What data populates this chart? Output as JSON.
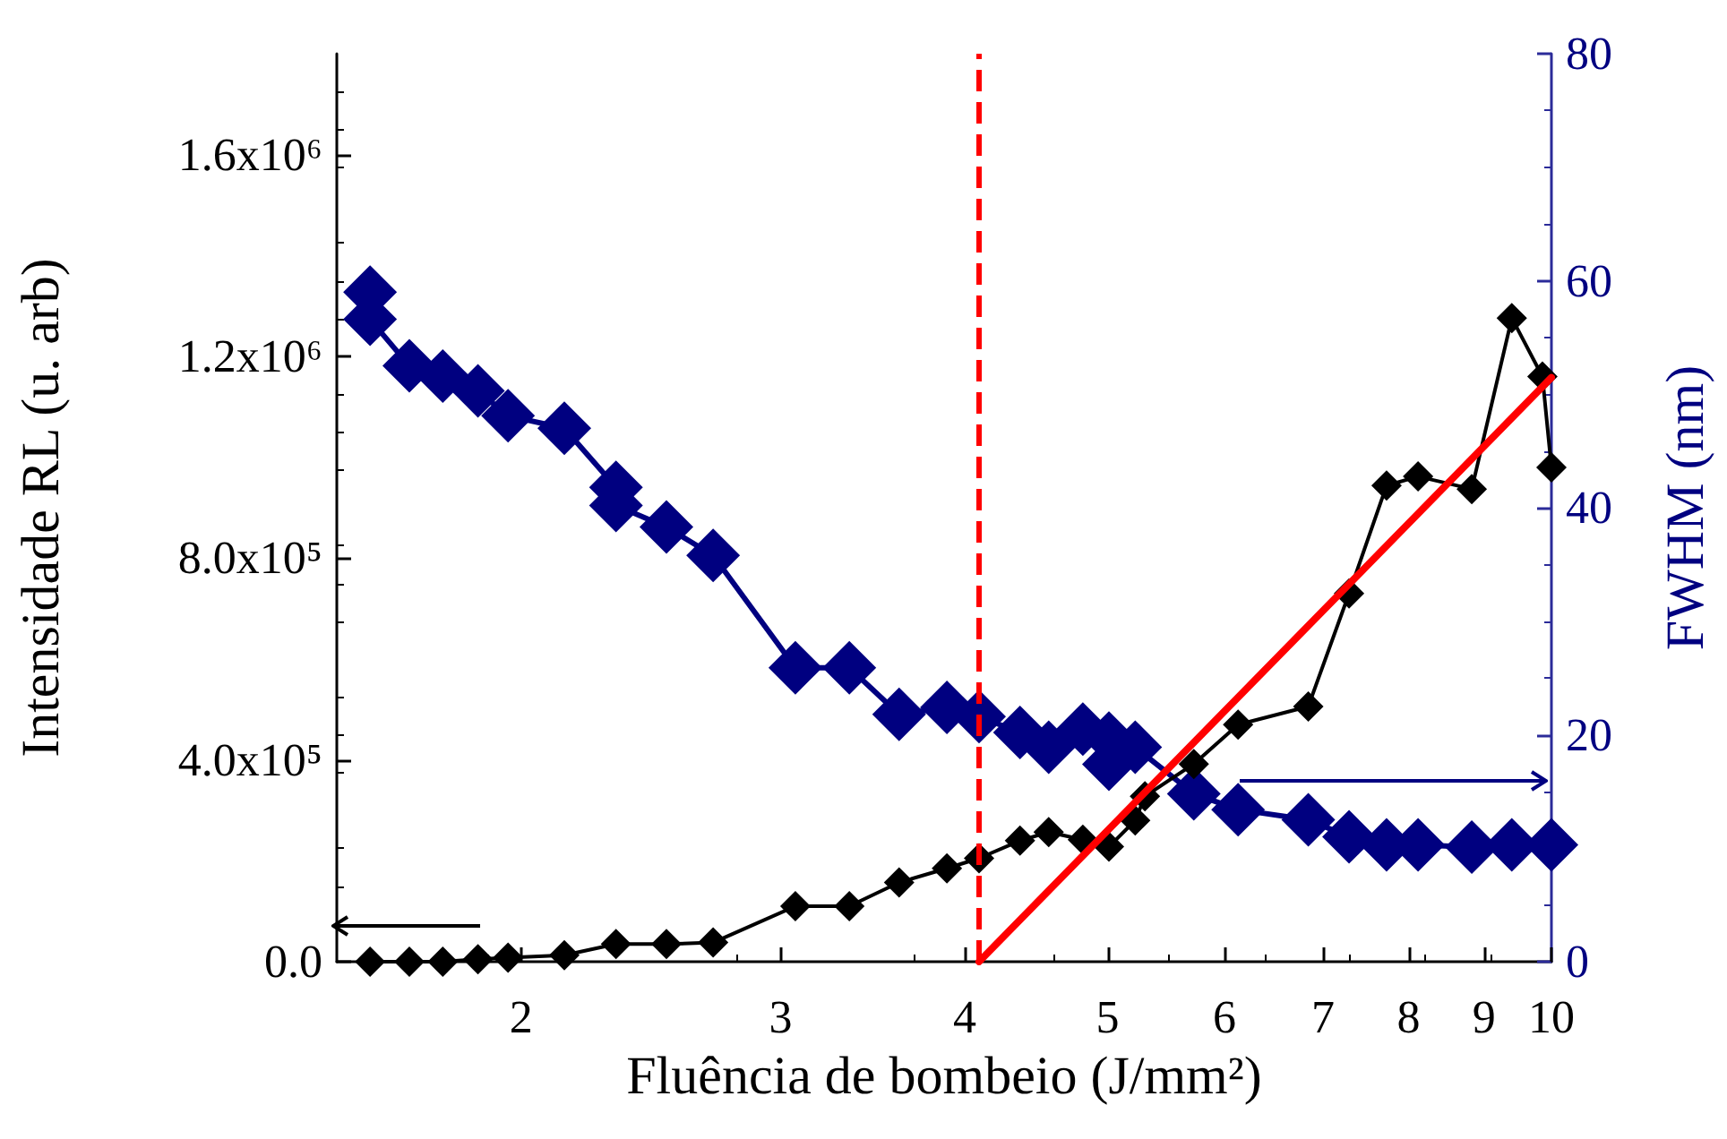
{
  "chart_data": {
    "type": "line",
    "xlabel": "Fluência de bombeio (J/mm²)",
    "ylabel": "Intensidade RL (u. arb)",
    "y2label": "FWHM (nm)",
    "log": "x",
    "grid": false,
    "marker": "diamond",
    "xlim": [
      1.5,
      10
    ],
    "xticks": [
      2,
      3,
      4,
      5,
      6,
      7,
      8,
      9,
      10
    ],
    "ylim": [
      0,
      1800000
    ],
    "yticks": [
      {
        "value": 0,
        "label": "0.0"
      },
      {
        "value": 400000,
        "label": "4.0x10⁵"
      },
      {
        "value": 800000,
        "label": "8.0x10⁵"
      },
      {
        "value": 1200000,
        "label": "1.2x10⁶"
      },
      {
        "value": 1600000,
        "label": "1.6x10⁶"
      }
    ],
    "y2lim": [
      0,
      80
    ],
    "y2ticks": [
      0,
      20,
      40,
      60,
      80
    ],
    "series": [
      {
        "color": "#000000",
        "x": [
          1.58,
          1.68,
          1.77,
          1.87,
          1.96,
          2.14,
          2.32,
          2.51,
          2.7,
          3.07,
          3.34,
          3.61,
          3.89,
          4.09,
          4.36,
          4.56,
          4.81,
          5.01,
          5.22,
          5.3,
          5.72,
          6.13,
          6.84,
          7.29,
          7.73,
          8.12,
          8.83,
          9.4,
          9.86,
          10
        ],
        "values": [
          0,
          0,
          0,
          5000,
          8000,
          13000,
          35000,
          35000,
          38000,
          110000,
          110000,
          157000,
          185000,
          205000,
          240000,
          257000,
          242000,
          228000,
          280000,
          328000,
          392000,
          470000,
          506000,
          730000,
          944000,
          962000,
          937000,
          1276000,
          1160000,
          980000
        ]
      },
      {
        "color": "#000080",
        "axis": "y2",
        "x": [
          1.58,
          1.58,
          1.68,
          1.77,
          1.87,
          1.96,
          2.14,
          2.32,
          2.32,
          2.51,
          2.7,
          3.07,
          3.34,
          3.61,
          3.89,
          4.09,
          4.36,
          4.56,
          4.81,
          5.01,
          5.01,
          5.22,
          5.72,
          6.13,
          6.84,
          7.29,
          7.73,
          8.12,
          8.83,
          9.4,
          10
        ],
        "values": [
          59.0,
          56.6,
          52.5,
          51.6,
          50.3,
          48.1,
          47.0,
          41.8,
          40.2,
          38.3,
          35.8,
          25.9,
          25.9,
          21.8,
          22.4,
          21.6,
          20.2,
          18.9,
          20.5,
          19.7,
          17.4,
          18.9,
          14.8,
          13.4,
          12.5,
          11.0,
          10.3,
          10.3,
          10.1,
          10.3,
          10.3
        ]
      },
      {
        "type": "line",
        "color": "#ff0000",
        "marker": "none",
        "x": [
          4.09,
          10
        ],
        "values": [
          0,
          1158000
        ]
      }
    ],
    "ref_lines": [
      {
        "axis": "x",
        "value": 4.09,
        "color": "#ff0000",
        "line_style": "dashed"
      }
    ]
  }
}
